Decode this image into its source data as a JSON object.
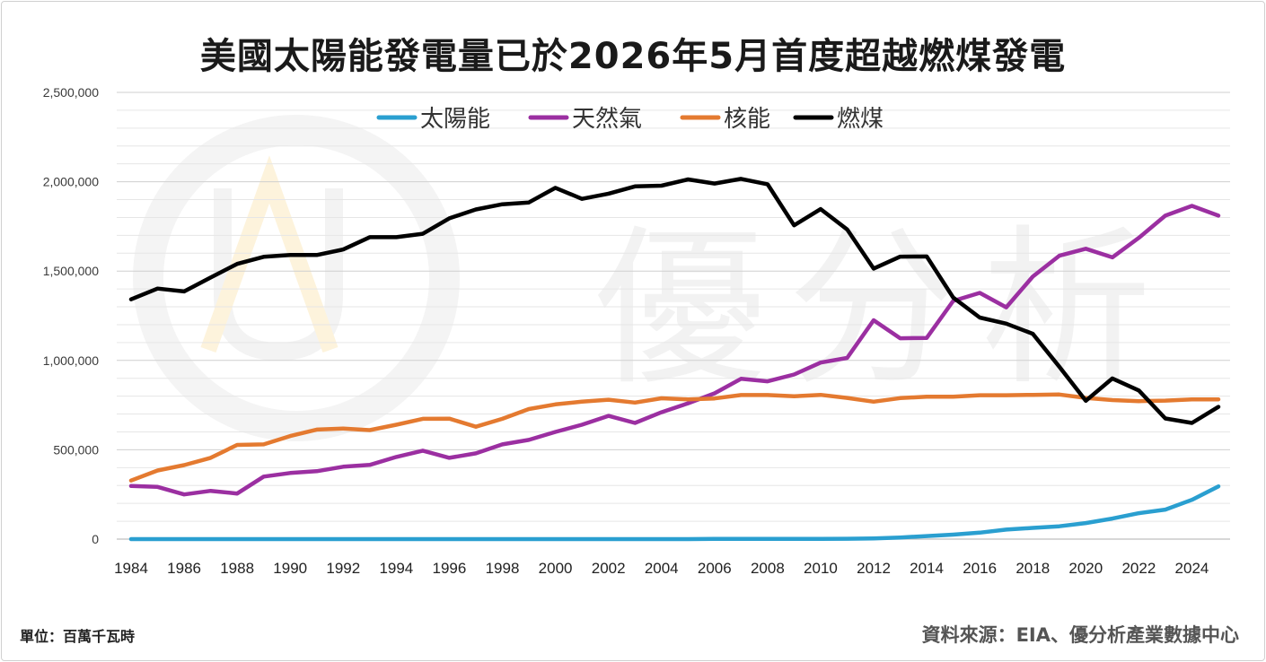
{
  "title": "美國太陽能發電量已於2026年5月首度超越燃煤發電",
  "unit_note": "單位：百萬千瓦時",
  "source_note": "資料來源：EIA、優分析產業數據中心",
  "watermark": {
    "text": "優分析"
  },
  "colors": {
    "solar": "#2a9fd0",
    "gas": "#9b2fa1",
    "nuclear": "#e47a30",
    "coal": "#000000",
    "grid": "#d9d9d9",
    "axis": "#bfbfbf"
  },
  "chart_data": {
    "type": "line",
    "title": "美國太陽能發電量已於2026年5月首度超越燃煤發電",
    "xlabel": "",
    "ylabel": "",
    "x": [
      1984,
      1985,
      1986,
      1987,
      1988,
      1989,
      1990,
      1991,
      1992,
      1993,
      1994,
      1995,
      1996,
      1997,
      1998,
      1999,
      2000,
      2001,
      2002,
      2003,
      2004,
      2005,
      2006,
      2007,
      2008,
      2009,
      2010,
      2011,
      2012,
      2013,
      2014,
      2015,
      2016,
      2017,
      2018,
      2019,
      2020,
      2021,
      2022,
      2023,
      2024,
      2025
    ],
    "xticks": [
      1984,
      1986,
      1988,
      1990,
      1992,
      1994,
      1996,
      1998,
      2000,
      2002,
      2004,
      2006,
      2008,
      2010,
      2012,
      2014,
      2016,
      2018,
      2020,
      2022,
      2024
    ],
    "ylim": [
      0,
      2500000
    ],
    "yticks": [
      0,
      500000,
      1000000,
      1500000,
      2000000,
      2500000
    ],
    "ytick_labels": [
      "0",
      "500,000",
      "1,000,000",
      "1,500,000",
      "2,000,000",
      "2,500,000"
    ],
    "grid": true,
    "legend_position": "top-center",
    "series": [
      {
        "name": "太陽能",
        "key": "solar",
        "values": [
          0,
          0,
          0,
          0,
          0,
          0,
          0,
          0,
          0,
          0,
          0,
          0,
          0,
          0,
          0,
          0,
          0,
          0,
          0,
          0,
          0,
          0,
          1000,
          1000,
          1000,
          1000,
          1000,
          2000,
          4000,
          9000,
          17000,
          25000,
          36000,
          53000,
          63000,
          72000,
          90000,
          115000,
          145000,
          165000,
          220000,
          295000
        ]
      },
      {
        "name": "天然氣",
        "key": "gas",
        "values": [
          297000,
          292000,
          250000,
          270000,
          255000,
          350000,
          370000,
          380000,
          405000,
          415000,
          460000,
          495000,
          455000,
          480000,
          530000,
          555000,
          600000,
          640000,
          690000,
          650000,
          710000,
          760000,
          816000,
          897000,
          883000,
          921000,
          988000,
          1014000,
          1225000,
          1124000,
          1126000,
          1333000,
          1378000,
          1297000,
          1469000,
          1586000,
          1625000,
          1577000,
          1686000,
          1810000,
          1865000,
          1810000
        ]
      },
      {
        "name": "核能",
        "key": "nuclear",
        "values": [
          328000,
          384000,
          414000,
          455000,
          527000,
          530000,
          577000,
          613000,
          619000,
          610000,
          640000,
          673000,
          674000,
          629000,
          673000,
          728000,
          754000,
          769000,
          780000,
          764000,
          788000,
          782000,
          787000,
          806000,
          806000,
          799000,
          807000,
          790000,
          769000,
          789000,
          797000,
          797000,
          805000,
          805000,
          807000,
          809000,
          790000,
          778000,
          772000,
          775000,
          782000,
          782000
        ]
      },
      {
        "name": "燃煤",
        "key": "coal",
        "values": [
          1342000,
          1402000,
          1386000,
          1464000,
          1540000,
          1580000,
          1590000,
          1590000,
          1621000,
          1690000,
          1690000,
          1709000,
          1795000,
          1845000,
          1874000,
          1884000,
          1966000,
          1904000,
          1933000,
          1974000,
          1978000,
          2013000,
          1990000,
          2016000,
          1986000,
          1756000,
          1847000,
          1733000,
          1514000,
          1581000,
          1582000,
          1352000,
          1240000,
          1206000,
          1149000,
          965000,
          774000,
          899000,
          832000,
          675000,
          650000,
          740000
        ]
      }
    ]
  }
}
